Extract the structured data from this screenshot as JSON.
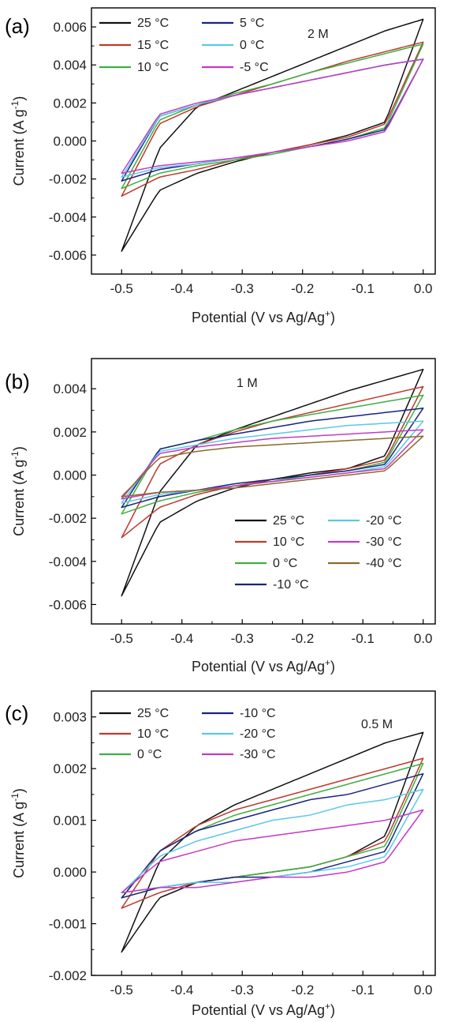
{
  "chart_data": [
    {
      "type": "line",
      "panel_label": "(a)",
      "annotation": "2 M",
      "xlabel": "Potential (V vs Ag/Ag",
      "xlabel_sup": "+",
      "xlabel_end": ")",
      "ylabel": "Current (A g",
      "ylabel_sup": "-1",
      "ylabel_end": ")",
      "xlim": [
        -0.55,
        0.02
      ],
      "ylim": [
        -0.007,
        0.007
      ],
      "xticks": [
        "-0.5",
        "-0.4",
        "-0.3",
        "-0.2",
        "-0.1",
        "0.0"
      ],
      "xtick_values": [
        -0.5,
        -0.4,
        -0.3,
        -0.2,
        -0.1,
        0.0
      ],
      "yticks": [
        "-0.006",
        "-0.004",
        "-0.002",
        "0.000",
        "0.002",
        "0.004",
        "0.006"
      ],
      "ytick_values": [
        -0.006,
        -0.004,
        -0.002,
        0.0,
        0.002,
        0.004,
        0.006
      ],
      "legend_position": "top-left",
      "legend_columns": 2,
      "series": [
        {
          "name": "25 °C",
          "color": "#111111",
          "ups": [
            -0.0058,
            -0.0004,
            0.0018,
            0.0026,
            0.0034,
            0.0042,
            0.005,
            0.0058,
            0.0064
          ],
          "lows": [
            0.0064,
            0.001,
            0.0003,
            -0.0002,
            -0.0006,
            -0.0011,
            -0.0017,
            -0.0026,
            -0.0058
          ]
        },
        {
          "name": "15 °C",
          "color": "#c0392b",
          "ups": [
            -0.0029,
            0.0009,
            0.0018,
            0.0024,
            0.003,
            0.0036,
            0.0042,
            0.0047,
            0.0052
          ],
          "lows": [
            0.0052,
            0.0009,
            0.0002,
            -0.0002,
            -0.0006,
            -0.001,
            -0.0015,
            -0.0019,
            -0.0029
          ]
        },
        {
          "name": "10 °C",
          "color": "#3cb043",
          "ups": [
            -0.0025,
            0.0011,
            0.0019,
            0.0025,
            0.003,
            0.0036,
            0.0041,
            0.0046,
            0.0051
          ],
          "lows": [
            0.0051,
            0.0007,
            0.0001,
            -0.0003,
            -0.0007,
            -0.001,
            -0.0013,
            -0.0017,
            -0.0025
          ]
        },
        {
          "name": "5 °C",
          "color": "#1a237e",
          "ups": [
            -0.0021,
            0.0013,
            0.0019,
            0.0024,
            0.0028,
            0.0032,
            0.0036,
            0.004,
            0.0043
          ],
          "lows": [
            0.0043,
            0.0006,
            0.0001,
            -0.0003,
            -0.0006,
            -0.0009,
            -0.0012,
            -0.0015,
            -0.0021
          ]
        },
        {
          "name": "0 °C",
          "color": "#5bc8e8",
          "ups": [
            -0.0019,
            0.0013,
            0.0019,
            0.0024,
            0.0028,
            0.0032,
            0.0036,
            0.004,
            0.0043
          ],
          "lows": [
            0.0043,
            0.0005,
            0.0,
            -0.0003,
            -0.0006,
            -0.0009,
            -0.0012,
            -0.0014,
            -0.0019
          ]
        },
        {
          "name": "-5 °C",
          "color": "#c43bc4",
          "ups": [
            -0.0017,
            0.0014,
            0.002,
            0.0024,
            0.0028,
            0.0032,
            0.0036,
            0.004,
            0.0043
          ],
          "lows": [
            0.0043,
            0.0005,
            0.0,
            -0.0003,
            -0.0006,
            -0.0009,
            -0.0011,
            -0.0013,
            -0.0017
          ]
        }
      ]
    },
    {
      "type": "line",
      "panel_label": "(b)",
      "annotation": "1 M",
      "xlabel": "Potential (V vs Ag/Ag",
      "xlabel_sup": "+",
      "xlabel_end": ")",
      "ylabel": "Current (A g",
      "ylabel_sup": "-1",
      "ylabel_end": ")",
      "xlim": [
        -0.55,
        0.02
      ],
      "ylim": [
        -0.0069,
        0.0054
      ],
      "xticks": [
        "-0.5",
        "-0.4",
        "-0.3",
        "-0.2",
        "-0.1",
        "0.0"
      ],
      "xtick_values": [
        -0.5,
        -0.4,
        -0.3,
        -0.2,
        -0.1,
        0.0
      ],
      "yticks": [
        "-0.006",
        "-0.004",
        "-0.002",
        "0.000",
        "0.002",
        "0.004"
      ],
      "ytick_values": [
        -0.006,
        -0.004,
        -0.002,
        0.0,
        0.002,
        0.004
      ],
      "legend_position": "bottom-right",
      "legend_columns": 2,
      "series": [
        {
          "name": "25 °C",
          "color": "#111111",
          "ups": [
            -0.0056,
            -0.0008,
            0.0014,
            0.0021,
            0.0027,
            0.0033,
            0.0039,
            0.0044,
            0.0049
          ],
          "lows": [
            0.0049,
            0.0009,
            0.0003,
            0.0001,
            -0.0002,
            -0.0006,
            -0.0012,
            -0.0022,
            -0.0056
          ]
        },
        {
          "name": "10 °C",
          "color": "#c0392b",
          "ups": [
            -0.0029,
            0.0005,
            0.0014,
            0.002,
            0.0025,
            0.0029,
            0.0033,
            0.0037,
            0.0041
          ],
          "lows": [
            0.0041,
            0.0007,
            0.0003,
            0.0,
            -0.0002,
            -0.0005,
            -0.0009,
            -0.0015,
            -0.0029
          ]
        },
        {
          "name": "0 °C",
          "color": "#3cb043",
          "ups": [
            -0.0018,
            0.0012,
            0.0016,
            0.0021,
            0.0025,
            0.0028,
            0.0031,
            0.0034,
            0.0037
          ],
          "lows": [
            0.0037,
            0.0006,
            0.0002,
            0.0,
            -0.0003,
            -0.0005,
            -0.0008,
            -0.0012,
            -0.0018
          ]
        },
        {
          "name": "-10 °C",
          "color": "#1a237e",
          "ups": [
            -0.0015,
            0.0012,
            0.0016,
            0.0019,
            0.0022,
            0.0025,
            0.0027,
            0.0029,
            0.0031
          ],
          "lows": [
            0.0031,
            0.0005,
            0.0002,
            0.0,
            -0.0002,
            -0.0004,
            -0.0007,
            -0.001,
            -0.0015
          ]
        },
        {
          "name": "-20 °C",
          "color": "#5bc8e8",
          "ups": [
            -0.0013,
            0.0011,
            0.0014,
            0.0017,
            0.0019,
            0.0021,
            0.0023,
            0.0024,
            0.0025
          ],
          "lows": [
            0.0025,
            0.0004,
            0.0001,
            -0.0001,
            -0.0003,
            -0.0005,
            -0.0007,
            -0.0009,
            -0.0013
          ]
        },
        {
          "name": "-30 °C",
          "color": "#c43bc4",
          "ups": [
            -0.0011,
            0.001,
            0.0013,
            0.0015,
            0.0017,
            0.0018,
            0.0019,
            0.002,
            0.0021
          ],
          "lows": [
            0.0021,
            0.0003,
            0.0001,
            -0.0001,
            -0.0003,
            -0.0005,
            -0.0007,
            -0.0008,
            -0.0011
          ]
        },
        {
          "name": "-40 °C",
          "color": "#8b6a2b",
          "ups": [
            -0.001,
            0.0008,
            0.0011,
            0.0013,
            0.0014,
            0.0015,
            0.0016,
            0.0017,
            0.0018
          ],
          "lows": [
            0.0018,
            0.0002,
            0.0,
            -0.0002,
            -0.0004,
            -0.0006,
            -0.0007,
            -0.0008,
            -0.001
          ]
        }
      ]
    },
    {
      "type": "line",
      "panel_label": "(c)",
      "annotation": "0.5 M",
      "xlabel": "Potential (V vs Ag/Ag",
      "xlabel_sup": "+",
      "xlabel_end": ")",
      "ylabel": "Current (A g",
      "ylabel_sup": "-1",
      "ylabel_end": ")",
      "xlim": [
        -0.55,
        0.02
      ],
      "ylim": [
        -0.002,
        0.0035
      ],
      "xticks": [
        "-0.5",
        "-0.4",
        "-0.3",
        "-0.2",
        "-0.1",
        "0.0"
      ],
      "xtick_values": [
        -0.5,
        -0.4,
        -0.3,
        -0.2,
        -0.1,
        0.0
      ],
      "yticks": [
        "-0.002",
        "-0.001",
        "0.000",
        "0.001",
        "0.002",
        "0.003"
      ],
      "ytick_values": [
        -0.002,
        -0.001,
        0.0,
        0.001,
        0.002,
        0.003
      ],
      "legend_position": "top-left",
      "legend_columns": 2,
      "series": [
        {
          "name": "25 °C",
          "color": "#111111",
          "ups": [
            -0.00155,
            0.0002,
            0.0009,
            0.0013,
            0.0016,
            0.0019,
            0.0022,
            0.0025,
            0.0027
          ],
          "lows": [
            0.0027,
            0.0007,
            0.0003,
            0.0001,
            0.0,
            -0.0001,
            -0.0002,
            -0.0005,
            -0.00155
          ]
        },
        {
          "name": "10 °C",
          "color": "#c0392b",
          "ups": [
            -0.0007,
            0.0004,
            0.0009,
            0.0012,
            0.0014,
            0.0016,
            0.0018,
            0.002,
            0.0022
          ],
          "lows": [
            0.0022,
            0.0006,
            0.0003,
            0.0001,
            0.0,
            -0.0001,
            -0.0002,
            -0.0004,
            -0.0007
          ]
        },
        {
          "name": "0 °C",
          "color": "#3cb043",
          "ups": [
            -0.0005,
            0.0004,
            0.0008,
            0.0011,
            0.0013,
            0.0015,
            0.0017,
            0.0019,
            0.0021
          ],
          "lows": [
            0.0021,
            0.0005,
            0.0003,
            0.0001,
            0.0,
            -0.0001,
            -0.0002,
            -0.0003,
            -0.0005
          ]
        },
        {
          "name": "-10 °C",
          "color": "#1a237e",
          "ups": [
            -0.0005,
            0.0004,
            0.0008,
            0.001,
            0.0012,
            0.0014,
            0.0015,
            0.0017,
            0.0019
          ],
          "lows": [
            0.0019,
            0.0004,
            0.0002,
            0.0,
            -0.0001,
            -0.0001,
            -0.0002,
            -0.0003,
            -0.0005
          ]
        },
        {
          "name": "-20 °C",
          "color": "#5bc8e8",
          "ups": [
            -0.0004,
            0.0003,
            0.0006,
            0.0008,
            0.001,
            0.0011,
            0.0013,
            0.0014,
            0.0016
          ],
          "lows": [
            0.0016,
            0.0003,
            0.0001,
            0.0,
            -0.0001,
            -0.0002,
            -0.0002,
            -0.0003,
            -0.0004
          ]
        },
        {
          "name": "-30 °C",
          "color": "#c43bc4",
          "ups": [
            -0.0004,
            0.0002,
            0.0004,
            0.0006,
            0.0007,
            0.0008,
            0.0009,
            0.001,
            0.0012
          ],
          "lows": [
            0.0012,
            0.0002,
            0.0,
            -0.0001,
            -0.0001,
            -0.0002,
            -0.0003,
            -0.0003,
            -0.0004
          ]
        }
      ]
    }
  ]
}
